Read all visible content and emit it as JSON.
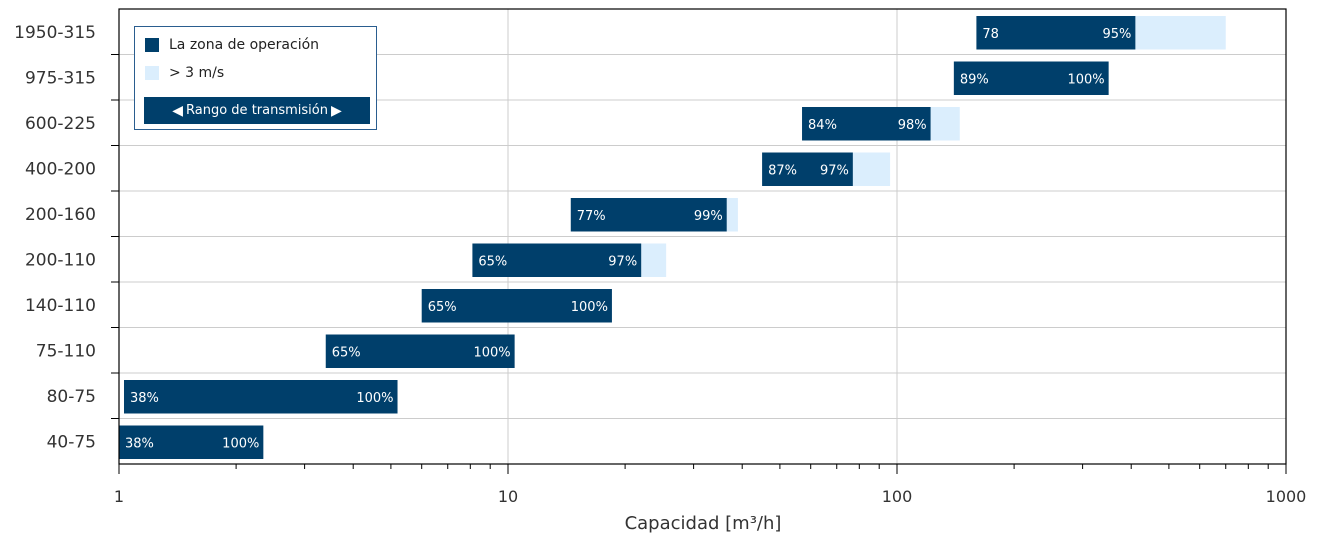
{
  "colors": {
    "operation": "#003f6b",
    "speed": "#dbeefd",
    "grid": "#cccccc",
    "axis": "#000000"
  },
  "legend": {
    "operation_label": "La zona de operación",
    "speed_label": "> 3 m/s",
    "range_label": "Rango de transmisión",
    "left_arrow": "◀",
    "right_arrow": "▶"
  },
  "chart_data": {
    "type": "bar",
    "orientation": "horizontal",
    "xscale": "log",
    "xlim": [
      1,
      1000
    ],
    "xticks": [
      "1",
      "10",
      "100",
      "1000"
    ],
    "xlabel": "Capacidad [m³/h]",
    "legend_position": "top-left",
    "grid": true,
    "bars": [
      {
        "category": "1950-315",
        "op_start": 160,
        "op_end": 410,
        "ext_end": 700,
        "label_left": "78",
        "label_right": "95%"
      },
      {
        "category": "975-315",
        "op_start": 140,
        "op_end": 350,
        "ext_end": 350,
        "label_left": "89%",
        "label_right": "100%"
      },
      {
        "category": "600-225",
        "op_start": 57,
        "op_end": 122,
        "ext_end": 145,
        "label_left": "84%",
        "label_right": "98%"
      },
      {
        "category": "400-200",
        "op_start": 45,
        "op_end": 77,
        "ext_end": 96,
        "label_left": "87%",
        "label_right": "97%"
      },
      {
        "category": "200-160",
        "op_start": 14.5,
        "op_end": 36.5,
        "ext_end": 39,
        "label_left": "77%",
        "label_right": "99%"
      },
      {
        "category": "200-110",
        "op_start": 8.1,
        "op_end": 22,
        "ext_end": 25.5,
        "label_left": "65%",
        "label_right": "97%"
      },
      {
        "category": "140-110",
        "op_start": 6,
        "op_end": 18.5,
        "ext_end": 18.5,
        "label_left": "65%",
        "label_right": "100%"
      },
      {
        "category": "75-110",
        "op_start": 3.4,
        "op_end": 10.4,
        "ext_end": 10.4,
        "label_left": "65%",
        "label_right": "100%"
      },
      {
        "category": "80-75",
        "op_start": 1.03,
        "op_end": 5.2,
        "ext_end": 5.2,
        "label_left": "38%",
        "label_right": "100%"
      },
      {
        "category": "40-75",
        "op_start": 1,
        "op_end": 2.35,
        "ext_end": 2.35,
        "label_left": "38%",
        "label_right": "100%"
      }
    ]
  }
}
